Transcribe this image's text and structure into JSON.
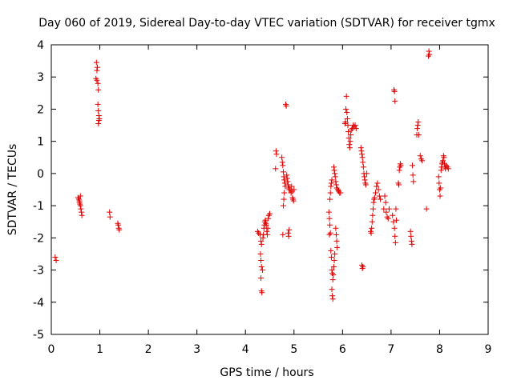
{
  "chart_data": {
    "type": "scatter",
    "title": "Day 060 of 2019, Sidereal Day-to-day VTEC variation (SDTVAR) for receiver tgmx",
    "xlabel": "GPS time / hours",
    "ylabel": "SDTVAR / TECUs",
    "xlim": [
      0,
      9
    ],
    "ylim": [
      -5,
      4
    ],
    "xticks": [
      "0",
      "1",
      "2",
      "3",
      "4",
      "5",
      "6",
      "7",
      "8",
      "9"
    ],
    "yticks": [
      "-5",
      "-4",
      "-3",
      "-2",
      "-1",
      "0",
      "1",
      "2",
      "3",
      "4"
    ],
    "grid": false,
    "marker": "+",
    "color": "#e00000",
    "series": [
      {
        "name": "SDTVAR",
        "points": [
          [
            0.08,
            -2.6
          ],
          [
            0.1,
            -2.7
          ],
          [
            0.55,
            -0.75
          ],
          [
            0.57,
            -0.8
          ],
          [
            0.58,
            -0.9
          ],
          [
            0.6,
            -1.0
          ],
          [
            0.6,
            -0.7
          ],
          [
            0.61,
            -1.1
          ],
          [
            0.62,
            -1.2
          ],
          [
            0.63,
            -1.3
          ],
          [
            0.58,
            -0.85
          ],
          [
            0.59,
            -0.95
          ],
          [
            0.93,
            3.45
          ],
          [
            0.94,
            3.2
          ],
          [
            0.95,
            3.3
          ],
          [
            0.92,
            2.95
          ],
          [
            0.94,
            2.9
          ],
          [
            0.96,
            2.8
          ],
          [
            0.97,
            2.6
          ],
          [
            0.96,
            2.15
          ],
          [
            0.97,
            1.95
          ],
          [
            0.98,
            1.8
          ],
          [
            0.99,
            1.7
          ],
          [
            0.98,
            1.65
          ],
          [
            0.97,
            1.55
          ],
          [
            1.2,
            -1.2
          ],
          [
            1.21,
            -1.35
          ],
          [
            1.37,
            -1.55
          ],
          [
            1.38,
            -1.6
          ],
          [
            1.39,
            -1.7
          ],
          [
            1.4,
            -1.75
          ],
          [
            4.25,
            -1.8
          ],
          [
            4.27,
            -1.85
          ],
          [
            4.3,
            -1.9
          ],
          [
            4.32,
            -2.1
          ],
          [
            4.33,
            -2.2
          ],
          [
            4.31,
            -2.5
          ],
          [
            4.32,
            -2.7
          ],
          [
            4.33,
            -2.9
          ],
          [
            4.35,
            -3.0
          ],
          [
            4.32,
            -3.25
          ],
          [
            4.33,
            -3.65
          ],
          [
            4.34,
            -3.7
          ],
          [
            4.36,
            -2.0
          ],
          [
            4.37,
            -1.9
          ],
          [
            4.38,
            -1.7
          ],
          [
            4.39,
            -1.6
          ],
          [
            4.4,
            -1.5
          ],
          [
            4.41,
            -1.45
          ],
          [
            4.42,
            -1.55
          ],
          [
            4.43,
            -1.6
          ],
          [
            4.44,
            -1.8
          ],
          [
            4.45,
            -1.9
          ],
          [
            4.46,
            -1.7
          ],
          [
            4.47,
            -1.4
          ],
          [
            4.48,
            -1.3
          ],
          [
            4.5,
            -1.25
          ],
          [
            4.63,
            0.7
          ],
          [
            4.64,
            0.6
          ],
          [
            4.62,
            0.15
          ],
          [
            4.75,
            0.5
          ],
          [
            4.76,
            0.35
          ],
          [
            4.77,
            0.25
          ],
          [
            4.78,
            0.05
          ],
          [
            4.79,
            -0.1
          ],
          [
            4.8,
            -0.2
          ],
          [
            4.81,
            -0.3
          ],
          [
            4.82,
            -0.4
          ],
          [
            4.8,
            -0.6
          ],
          [
            4.79,
            -0.8
          ],
          [
            4.78,
            -1.0
          ],
          [
            4.77,
            -1.9
          ],
          [
            4.83,
            2.15
          ],
          [
            4.84,
            2.1
          ],
          [
            4.85,
            -0.05
          ],
          [
            4.86,
            -0.15
          ],
          [
            4.87,
            -0.25
          ],
          [
            4.88,
            -0.35
          ],
          [
            4.89,
            -0.45
          ],
          [
            4.9,
            -0.5
          ],
          [
            4.88,
            -1.85
          ],
          [
            4.89,
            -1.95
          ],
          [
            4.9,
            -1.75
          ],
          [
            4.92,
            -0.5
          ],
          [
            4.94,
            -0.6
          ],
          [
            4.95,
            -0.4
          ],
          [
            4.96,
            -0.55
          ],
          [
            4.97,
            -0.75
          ],
          [
            4.98,
            -0.8
          ],
          [
            4.99,
            -0.85
          ],
          [
            5.0,
            -0.5
          ],
          [
            5.72,
            -1.2
          ],
          [
            5.73,
            -1.4
          ],
          [
            5.74,
            -1.6
          ],
          [
            5.75,
            -1.85
          ],
          [
            5.73,
            -1.9
          ],
          [
            5.74,
            -0.8
          ],
          [
            5.75,
            -0.6
          ],
          [
            5.76,
            -0.4
          ],
          [
            5.77,
            -0.3
          ],
          [
            5.78,
            -0.2
          ],
          [
            5.76,
            -2.4
          ],
          [
            5.77,
            -2.6
          ],
          [
            5.78,
            -3.0
          ],
          [
            5.79,
            -3.1
          ],
          [
            5.8,
            -3.3
          ],
          [
            5.78,
            -3.6
          ],
          [
            5.79,
            -3.8
          ],
          [
            5.8,
            -3.9
          ],
          [
            5.81,
            -3.15
          ],
          [
            5.82,
            -2.9
          ],
          [
            5.83,
            -2.7
          ],
          [
            5.84,
            -2.5
          ],
          [
            5.82,
            0.2
          ],
          [
            5.83,
            0.1
          ],
          [
            5.84,
            0.0
          ],
          [
            5.85,
            -0.1
          ],
          [
            5.86,
            -0.25
          ],
          [
            5.87,
            -0.35
          ],
          [
            5.86,
            -1.7
          ],
          [
            5.87,
            -1.9
          ],
          [
            5.88,
            -2.1
          ],
          [
            5.89,
            -2.3
          ],
          [
            5.88,
            -0.45
          ],
          [
            5.9,
            -0.5
          ],
          [
            5.92,
            -0.55
          ],
          [
            5.94,
            -0.6
          ],
          [
            5.96,
            -0.6
          ],
          [
            6.05,
            1.55
          ],
          [
            6.06,
            1.6
          ],
          [
            6.07,
            2.0
          ],
          [
            6.08,
            2.4
          ],
          [
            6.09,
            1.9
          ],
          [
            6.1,
            1.7
          ],
          [
            6.11,
            1.5
          ],
          [
            6.12,
            1.3
          ],
          [
            6.13,
            1.1
          ],
          [
            6.14,
            0.9
          ],
          [
            6.15,
            0.8
          ],
          [
            6.16,
            1.0
          ],
          [
            6.17,
            1.2
          ],
          [
            6.18,
            1.35
          ],
          [
            6.2,
            1.4
          ],
          [
            6.22,
            1.5
          ],
          [
            6.24,
            1.45
          ],
          [
            6.26,
            1.5
          ],
          [
            6.28,
            1.4
          ],
          [
            6.38,
            0.8
          ],
          [
            6.39,
            0.7
          ],
          [
            6.4,
            0.6
          ],
          [
            6.41,
            0.5
          ],
          [
            6.42,
            0.35
          ],
          [
            6.43,
            0.2
          ],
          [
            6.44,
            0.0
          ],
          [
            6.45,
            -0.1
          ],
          [
            6.46,
            -0.2
          ],
          [
            6.47,
            -0.3
          ],
          [
            6.48,
            -0.35
          ],
          [
            6.5,
            0.0
          ],
          [
            6.4,
            -2.85
          ],
          [
            6.41,
            -2.95
          ],
          [
            6.42,
            -2.9
          ],
          [
            6.58,
            -1.8
          ],
          [
            6.59,
            -1.85
          ],
          [
            6.6,
            -1.7
          ],
          [
            6.61,
            -1.5
          ],
          [
            6.62,
            -1.3
          ],
          [
            6.63,
            -1.1
          ],
          [
            6.64,
            -0.9
          ],
          [
            6.65,
            -0.8
          ],
          [
            6.66,
            -0.75
          ],
          [
            6.68,
            -0.6
          ],
          [
            6.7,
            -0.4
          ],
          [
            6.72,
            -0.3
          ],
          [
            6.74,
            -0.5
          ],
          [
            6.76,
            -0.7
          ],
          [
            6.78,
            -0.8
          ],
          [
            6.85,
            -1.1
          ],
          [
            6.87,
            -0.7
          ],
          [
            6.89,
            -0.9
          ],
          [
            6.9,
            -1.2
          ],
          [
            6.92,
            -1.35
          ],
          [
            6.94,
            -1.4
          ],
          [
            6.96,
            -1.1
          ],
          [
            7.03,
            -1.3
          ],
          [
            7.05,
            -1.5
          ],
          [
            7.07,
            -1.7
          ],
          [
            7.08,
            -1.95
          ],
          [
            7.09,
            -2.15
          ],
          [
            7.1,
            -1.1
          ],
          [
            7.11,
            -1.45
          ],
          [
            7.06,
            2.6
          ],
          [
            7.07,
            2.55
          ],
          [
            7.08,
            2.25
          ],
          [
            7.15,
            -0.3
          ],
          [
            7.16,
            -0.35
          ],
          [
            7.17,
            0.1
          ],
          [
            7.18,
            0.2
          ],
          [
            7.19,
            0.3
          ],
          [
            7.2,
            0.25
          ],
          [
            7.4,
            -1.8
          ],
          [
            7.41,
            -1.95
          ],
          [
            7.42,
            -2.1
          ],
          [
            7.43,
            -2.2
          ],
          [
            7.44,
            0.25
          ],
          [
            7.45,
            -0.05
          ],
          [
            7.46,
            -0.25
          ],
          [
            7.53,
            1.2
          ],
          [
            7.54,
            1.4
          ],
          [
            7.55,
            1.5
          ],
          [
            7.56,
            1.6
          ],
          [
            7.57,
            1.2
          ],
          [
            7.6,
            0.55
          ],
          [
            7.62,
            0.45
          ],
          [
            7.64,
            0.4
          ],
          [
            7.73,
            -1.1
          ],
          [
            7.77,
            3.65
          ],
          [
            7.78,
            3.8
          ],
          [
            7.79,
            3.7
          ],
          [
            7.98,
            -0.1
          ],
          [
            7.99,
            -0.3
          ],
          [
            8.0,
            -0.5
          ],
          [
            8.01,
            -0.7
          ],
          [
            8.02,
            -0.45
          ],
          [
            8.03,
            0.1
          ],
          [
            8.04,
            0.2
          ],
          [
            8.05,
            0.3
          ],
          [
            8.06,
            0.35
          ],
          [
            8.07,
            0.4
          ],
          [
            8.08,
            0.55
          ],
          [
            8.09,
            0.5
          ],
          [
            8.1,
            0.3
          ],
          [
            8.11,
            0.2
          ],
          [
            8.12,
            0.15
          ],
          [
            8.14,
            0.25
          ],
          [
            8.16,
            0.2
          ],
          [
            8.18,
            0.15
          ]
        ]
      }
    ]
  }
}
